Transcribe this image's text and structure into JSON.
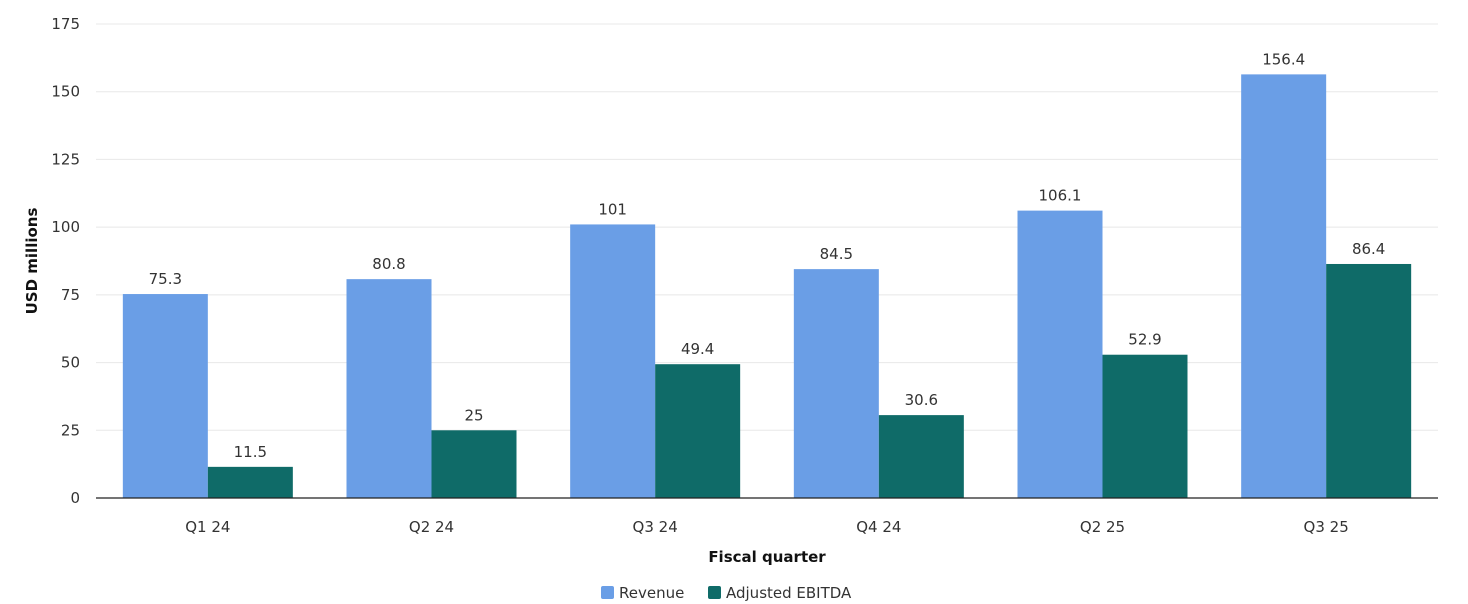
{
  "chart_data": {
    "type": "bar",
    "categories": [
      "Q1 24",
      "Q2 24",
      "Q3 24",
      "Q4 24",
      "Q2 25",
      "Q3 25"
    ],
    "series": [
      {
        "name": "Revenue",
        "values": [
          75.3,
          80.8,
          101,
          84.5,
          106.1,
          156.4
        ],
        "color": "#6a9ee6"
      },
      {
        "name": "Adjusted EBITDA",
        "values": [
          11.5,
          25,
          49.4,
          30.6,
          52.9,
          86.4
        ],
        "color": "#0f6b68"
      }
    ],
    "data_labels": [
      [
        "75.3",
        "80.8",
        "101",
        "84.5",
        "106.1",
        "156.4"
      ],
      [
        "11.5",
        "25",
        "49.4",
        "30.6",
        "52.9",
        "86.4"
      ]
    ],
    "xlabel": "Fiscal quarter",
    "ylabel": "USD millions",
    "ylim": [
      0,
      175
    ],
    "yticks": [
      "0",
      "25",
      "50",
      "75",
      "100",
      "125",
      "150",
      "175"
    ],
    "grid": true,
    "legend": {
      "position": "bottom-center"
    }
  }
}
